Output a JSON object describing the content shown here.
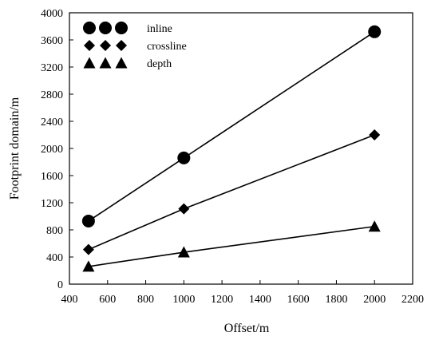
{
  "chart_data": {
    "type": "line",
    "title": "",
    "xlabel": "Offset/m",
    "ylabel": "Footprint domain/m",
    "xlim": [
      400,
      2200
    ],
    "ylim": [
      0,
      4000
    ],
    "x_ticks": [
      400,
      600,
      800,
      1000,
      1200,
      1400,
      1600,
      1800,
      2000,
      2200
    ],
    "y_ticks": [
      0,
      400,
      800,
      1200,
      1600,
      2000,
      2400,
      2800,
      3200,
      3600,
      4000
    ],
    "x_tick_labels": [
      "400",
      "600",
      "800",
      "1000",
      "1200",
      "1400",
      "1600",
      "1800",
      "2000",
      "2200"
    ],
    "y_tick_labels": [
      "0",
      "400",
      "800",
      "1200",
      "1600",
      "2000",
      "2400",
      "2800",
      "3200",
      "3600",
      "4000"
    ],
    "grid": false,
    "legend_position": "top-left",
    "x": [
      500,
      1000,
      2000
    ],
    "series": [
      {
        "name": "inline",
        "marker": "circle",
        "color": "#000000",
        "values": [
          930,
          1860,
          3720
        ]
      },
      {
        "name": "crossline",
        "marker": "diamond",
        "color": "#000000",
        "values": [
          510,
          1110,
          2200
        ]
      },
      {
        "name": "depth",
        "marker": "triangle",
        "color": "#000000",
        "values": [
          260,
          470,
          850
        ]
      }
    ]
  }
}
